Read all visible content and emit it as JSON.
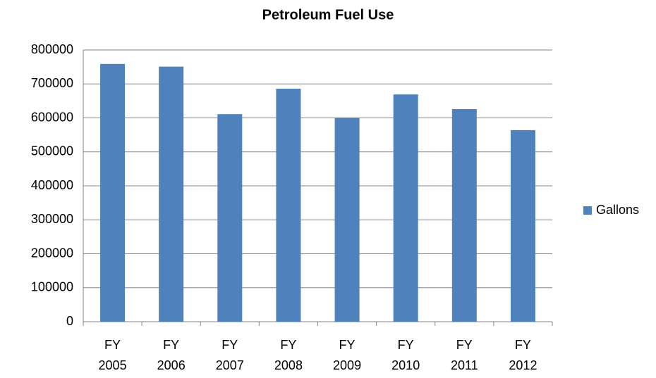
{
  "chart_data": {
    "type": "bar",
    "title": "Petroleum Fuel Use",
    "categories": [
      "FY 2005",
      "FY 2006",
      "FY 2007",
      "FY 2008",
      "FY 2009",
      "FY 2010",
      "FY 2011",
      "FY 2012"
    ],
    "series": [
      {
        "name": "Gallons",
        "color": "#4f81bd",
        "values": [
          759000,
          751000,
          611000,
          686000,
          601000,
          669000,
          626000,
          564000
        ]
      }
    ],
    "ylim": [
      0,
      800000
    ],
    "yticks": [
      0,
      100000,
      200000,
      300000,
      400000,
      500000,
      600000,
      700000,
      800000
    ],
    "grid": true,
    "legend": "right"
  }
}
